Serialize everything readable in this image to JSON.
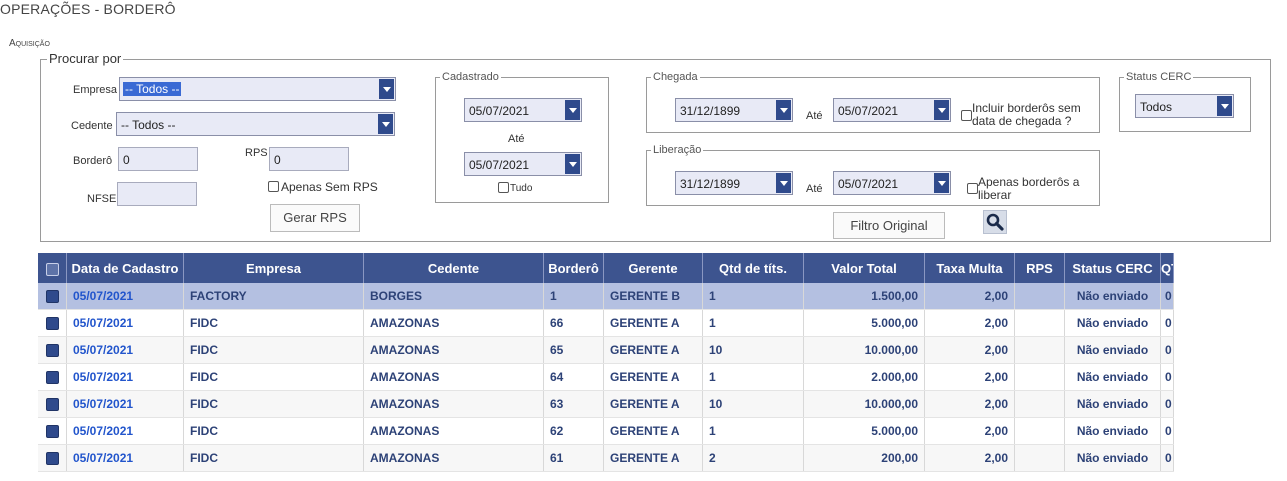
{
  "page": {
    "title": "OPERAÇÕES - BORDERÔ",
    "subtitle": "Aquisição"
  },
  "filters": {
    "legend": "Procurar por",
    "empresa": {
      "label": "Empresa",
      "value": "-- Todos --"
    },
    "cedente": {
      "label": "Cedente",
      "value": "-- Todos --"
    },
    "bordero": {
      "label": "Borderô",
      "value": "0"
    },
    "rps": {
      "label": "RPS",
      "value": "0"
    },
    "nfse": {
      "label": "NFSE",
      "value": ""
    },
    "apenas_sem_rps": "Apenas Sem RPS",
    "gerar_rps": "Gerar RPS"
  },
  "cadastrado": {
    "legend": "Cadastrado",
    "from": "05/07/2021",
    "ate": "Até",
    "to": "05/07/2021",
    "tudo": "Tudo"
  },
  "chegada": {
    "legend": "Chegada",
    "from": "31/12/1899",
    "ate": "Até",
    "to": "05/07/2021",
    "incluir": "Incluir borderôs sem data de chegada ?"
  },
  "liberacao": {
    "legend": "Liberação",
    "from": "31/12/1899",
    "ate": "Até",
    "to": "05/07/2021",
    "apenas": "Apenas borderôs a liberar"
  },
  "status_cerc": {
    "legend": "Status CERC",
    "value": "Todos"
  },
  "filtro_original": "Filtro Original",
  "icons": {
    "search": "search-icon"
  },
  "table": {
    "headers": [
      "Data de Cadastro",
      "Empresa",
      "Cedente",
      "Borderô",
      "Gerente",
      "Qtd de títs.",
      "Valor Total",
      "Taxa Multa",
      "RPS",
      "Status CERC",
      "QT"
    ],
    "rows": [
      {
        "data": "05/07/2021",
        "empresa": "FACTORY",
        "cedente": "BORGES",
        "bordero": "1",
        "gerente": "GERENTE B",
        "qtd": "1",
        "valor": "1.500,00",
        "taxa": "2,00",
        "rps": "",
        "status": "Não enviado",
        "qt": "0"
      },
      {
        "data": "05/07/2021",
        "empresa": "FIDC",
        "cedente": "AMAZONAS",
        "bordero": "66",
        "gerente": "GERENTE A",
        "qtd": "1",
        "valor": "5.000,00",
        "taxa": "2,00",
        "rps": "",
        "status": "Não enviado",
        "qt": "0"
      },
      {
        "data": "05/07/2021",
        "empresa": "FIDC",
        "cedente": "AMAZONAS",
        "bordero": "65",
        "gerente": "GERENTE A",
        "qtd": "10",
        "valor": "10.000,00",
        "taxa": "2,00",
        "rps": "",
        "status": "Não enviado",
        "qt": "0"
      },
      {
        "data": "05/07/2021",
        "empresa": "FIDC",
        "cedente": "AMAZONAS",
        "bordero": "64",
        "gerente": "GERENTE A",
        "qtd": "1",
        "valor": "2.000,00",
        "taxa": "2,00",
        "rps": "",
        "status": "Não enviado",
        "qt": "0"
      },
      {
        "data": "05/07/2021",
        "empresa": "FIDC",
        "cedente": "AMAZONAS",
        "bordero": "63",
        "gerente": "GERENTE A",
        "qtd": "10",
        "valor": "10.000,00",
        "taxa": "2,00",
        "rps": "",
        "status": "Não enviado",
        "qt": "0"
      },
      {
        "data": "05/07/2021",
        "empresa": "FIDC",
        "cedente": "AMAZONAS",
        "bordero": "62",
        "gerente": "GERENTE A",
        "qtd": "1",
        "valor": "5.000,00",
        "taxa": "2,00",
        "rps": "",
        "status": "Não enviado",
        "qt": "0"
      },
      {
        "data": "05/07/2021",
        "empresa": "FIDC",
        "cedente": "AMAZONAS",
        "bordero": "61",
        "gerente": "GERENTE A",
        "qtd": "2",
        "valor": "200,00",
        "taxa": "2,00",
        "rps": "",
        "status": "Não enviado",
        "qt": "0"
      }
    ]
  }
}
